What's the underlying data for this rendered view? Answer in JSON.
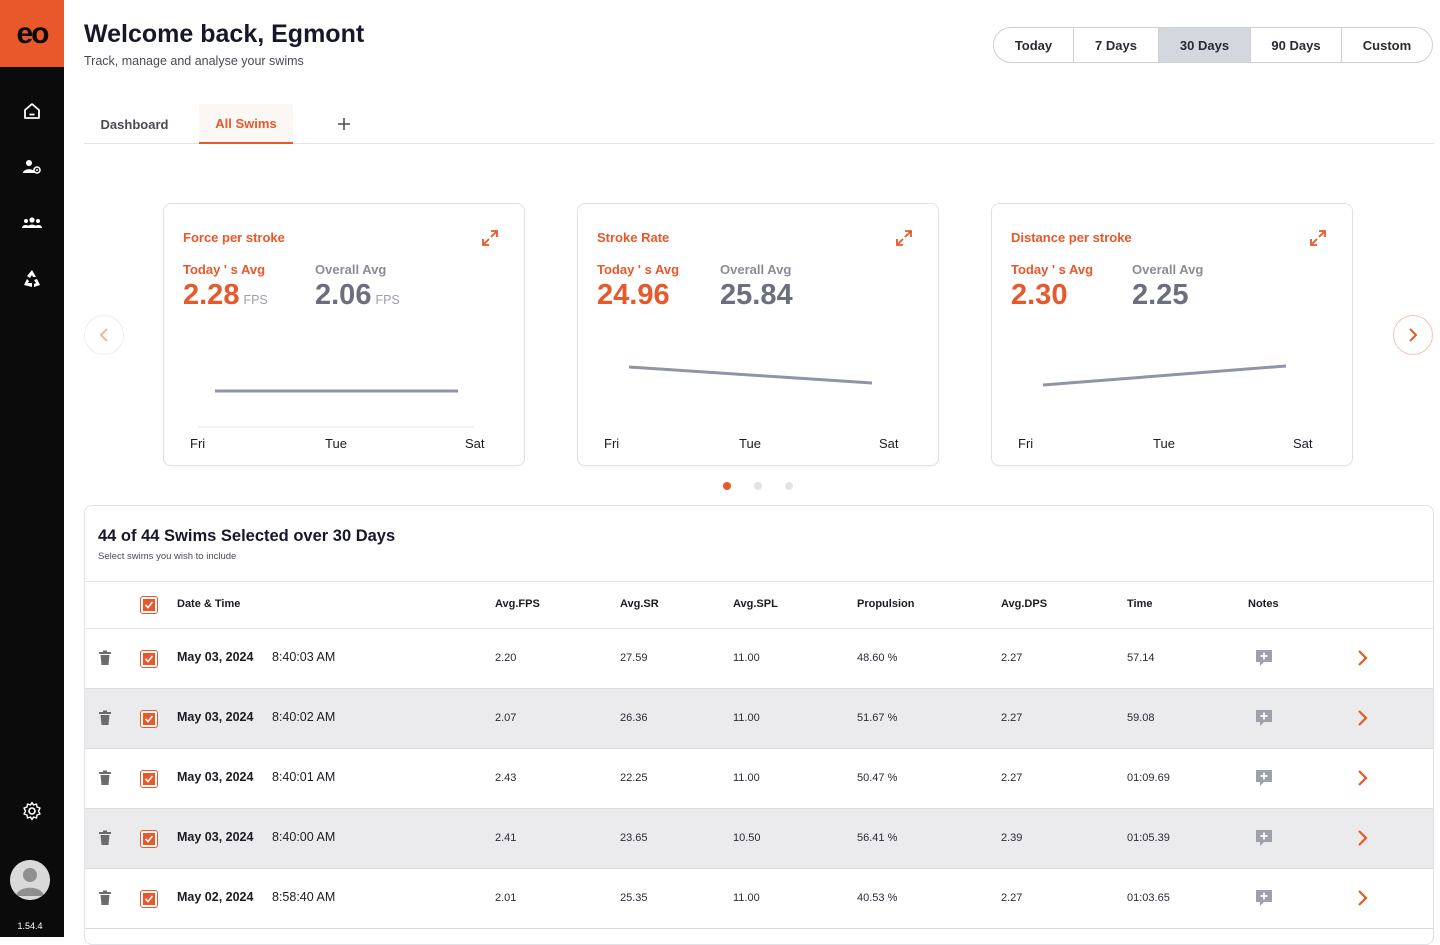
{
  "app": {
    "logo_text": "eo",
    "version": "1.54.4"
  },
  "sidebar": {
    "items": [
      {
        "icon": "home-icon"
      },
      {
        "icon": "user-settings-icon"
      },
      {
        "icon": "team-icon"
      },
      {
        "icon": "recycle-icon"
      }
    ],
    "settings_icon": "gear-icon"
  },
  "header": {
    "title": "Welcome back, Egmont",
    "subtitle": "Track, manage and analyse your swims"
  },
  "range": {
    "options": [
      "Today",
      "7 Days",
      "30 Days",
      "90 Days",
      "Custom"
    ],
    "selected": "30 Days"
  },
  "tabs": {
    "items": [
      "Dashboard",
      "All Swims"
    ],
    "active": "All Swims",
    "add_label": "+"
  },
  "cards": [
    {
      "title": "Force per stroke",
      "today_label": "Today ' s Avg",
      "today_value": "2.28",
      "overall_label": "Overall Avg",
      "overall_value": "2.06",
      "unit": "FPS",
      "x_labels": [
        "Fri",
        "Tue",
        "Sat"
      ]
    },
    {
      "title": "Stroke Rate",
      "today_label": "Today ' s Avg",
      "today_value": "24.96",
      "overall_label": "Overall Avg",
      "overall_value": "25.84",
      "unit": "",
      "x_labels": [
        "Fri",
        "Tue",
        "Sat"
      ]
    },
    {
      "title": "Distance per stroke",
      "today_label": "Today ' s Avg",
      "today_value": "2.30",
      "overall_label": "Overall Avg",
      "overall_value": "2.25",
      "unit": "",
      "x_labels": [
        "Fri",
        "Tue",
        "Sat"
      ]
    }
  ],
  "carousel": {
    "pages": 3,
    "active_page": 1
  },
  "table": {
    "title": "44 of 44 Swims Selected over 30 Days",
    "subtitle": "Select swims you wish to include",
    "columns": [
      "Date & Time",
      "Avg.FPS",
      "Avg.SR",
      "Avg.SPL",
      "Propulsion",
      "Avg.DPS",
      "Time",
      "Notes"
    ],
    "rows": [
      {
        "date": "May 03, 2024",
        "time": "8:40:03 AM",
        "fps": "2.20",
        "sr": "27.59",
        "spl": "11.00",
        "propulsion": "48.60 %",
        "dps": "2.27",
        "duration": "57.14"
      },
      {
        "date": "May 03, 2024",
        "time": "8:40:02 AM",
        "fps": "2.07",
        "sr": "26.36",
        "spl": "11.00",
        "propulsion": "51.67 %",
        "dps": "2.27",
        "duration": "59.08"
      },
      {
        "date": "May 03, 2024",
        "time": "8:40:01 AM",
        "fps": "2.43",
        "sr": "22.25",
        "spl": "11.00",
        "propulsion": "50.47 %",
        "dps": "2.27",
        "duration": "01:09.69"
      },
      {
        "date": "May 03, 2024",
        "time": "8:40:00 AM",
        "fps": "2.41",
        "sr": "23.65",
        "spl": "10.50",
        "propulsion": "56.41 %",
        "dps": "2.39",
        "duration": "01:05.39"
      },
      {
        "date": "May 02, 2024",
        "time": "8:58:40 AM",
        "fps": "2.01",
        "sr": "25.35",
        "spl": "11.00",
        "propulsion": "40.53 %",
        "dps": "2.27",
        "duration": "01:03.65"
      }
    ]
  },
  "colors": {
    "accent": "#e8582a",
    "sidebar": "#0b0b0b",
    "muted": "#8a8c98",
    "row_alt": "#ebebee"
  }
}
